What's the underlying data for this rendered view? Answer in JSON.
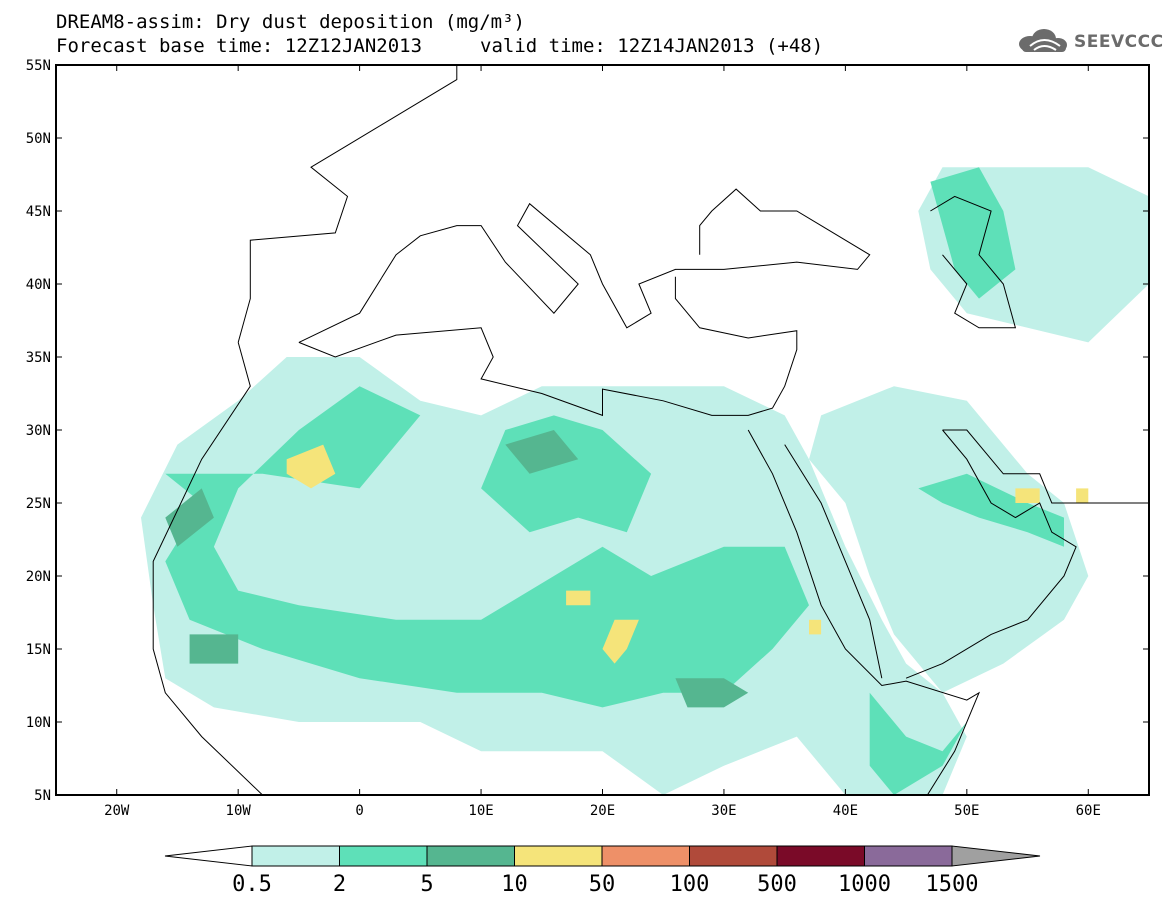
{
  "header": {
    "title": "DREAM8-assim: Dry dust deposition (mg/m³)",
    "base_time": "Forecast base time: 12Z12JAN2013",
    "valid_time": "valid time: 12Z14JAN2013 (+48)",
    "logo_text": "SEEVCCC"
  },
  "axes": {
    "lon_range": [
      -25,
      65
    ],
    "lat_range": [
      5,
      55
    ],
    "lon_ticks": [
      "20W",
      "10W",
      "0",
      "10E",
      "20E",
      "30E",
      "40E",
      "50E",
      "60E"
    ],
    "lon_values": [
      -20,
      -10,
      0,
      10,
      20,
      30,
      40,
      50,
      60
    ],
    "lat_ticks": [
      "55N",
      "50N",
      "45N",
      "40N",
      "35N",
      "30N",
      "25N",
      "20N",
      "15N",
      "10N",
      "5N"
    ],
    "lat_values": [
      55,
      50,
      45,
      40,
      35,
      30,
      25,
      20,
      15,
      10,
      5
    ]
  },
  "colorbar": {
    "labels": [
      "0.5",
      "2",
      "5",
      "10",
      "50",
      "100",
      "500",
      "1000",
      "1500"
    ],
    "colors": [
      "#c1f0e8",
      "#5ee0b8",
      "#55b690",
      "#f5e47a",
      "#ee9068",
      "#b04a3a",
      "#7a0a28",
      "#8a6a9a"
    ],
    "under_color": "#ffffff",
    "over_color": "#a0a0a0"
  },
  "dust_regions": [
    {
      "level": 0,
      "color": "#c1f0e8",
      "points": [
        [
          -18,
          24
        ],
        [
          -17,
          18
        ],
        [
          -16,
          13
        ],
        [
          -12,
          11
        ],
        [
          -5,
          10
        ],
        [
          5,
          10
        ],
        [
          10,
          8
        ],
        [
          15,
          8
        ],
        [
          20,
          8
        ],
        [
          25,
          5
        ],
        [
          30,
          7
        ],
        [
          36,
          9
        ],
        [
          40,
          5
        ],
        [
          48,
          5
        ],
        [
          50,
          9
        ],
        [
          48,
          12
        ],
        [
          45,
          14
        ],
        [
          43,
          17
        ],
        [
          40,
          22
        ],
        [
          37,
          28
        ],
        [
          35,
          31
        ],
        [
          30,
          33
        ],
        [
          20,
          33
        ],
        [
          15,
          33
        ],
        [
          10,
          31
        ],
        [
          5,
          32
        ],
        [
          0,
          35
        ],
        [
          -6,
          35
        ],
        [
          -10,
          32
        ],
        [
          -15,
          29
        ]
      ]
    },
    {
      "level": 0,
      "color": "#c1f0e8",
      "points": [
        [
          38,
          31
        ],
        [
          44,
          33
        ],
        [
          50,
          32
        ],
        [
          55,
          27
        ],
        [
          58,
          25
        ],
        [
          60,
          20
        ],
        [
          58,
          17
        ],
        [
          53,
          14
        ],
        [
          48,
          12
        ],
        [
          44,
          16
        ],
        [
          42,
          20
        ],
        [
          40,
          25
        ],
        [
          37,
          28
        ]
      ]
    },
    {
      "level": 0,
      "color": "#c1f0e8",
      "points": [
        [
          48,
          48
        ],
        [
          54,
          48
        ],
        [
          60,
          48
        ],
        [
          65,
          46
        ],
        [
          65,
          40
        ],
        [
          60,
          36
        ],
        [
          55,
          37
        ],
        [
          50,
          38
        ],
        [
          47,
          41
        ],
        [
          46,
          45
        ]
      ]
    },
    {
      "level": 1,
      "color": "#5ee0b8",
      "points": [
        [
          -16,
          27
        ],
        [
          -13,
          25
        ],
        [
          -16,
          21
        ],
        [
          -14,
          17
        ],
        [
          -8,
          15
        ],
        [
          0,
          13
        ],
        [
          8,
          12
        ],
        [
          15,
          12
        ],
        [
          20,
          11
        ],
        [
          25,
          12
        ],
        [
          30,
          12
        ],
        [
          34,
          15
        ],
        [
          37,
          18
        ],
        [
          35,
          22
        ],
        [
          30,
          22
        ],
        [
          24,
          20
        ],
        [
          20,
          22
        ],
        [
          16,
          20
        ],
        [
          10,
          17
        ],
        [
          3,
          17
        ],
        [
          -5,
          18
        ],
        [
          -10,
          19
        ],
        [
          -12,
          22
        ],
        [
          -10,
          26
        ],
        [
          -5,
          30
        ],
        [
          0,
          33
        ],
        [
          5,
          31
        ],
        [
          0,
          26
        ],
        [
          -8,
          27
        ]
      ]
    },
    {
      "level": 1,
      "color": "#5ee0b8",
      "points": [
        [
          10,
          26
        ],
        [
          12,
          30
        ],
        [
          16,
          31
        ],
        [
          20,
          30
        ],
        [
          24,
          27
        ],
        [
          22,
          23
        ],
        [
          18,
          24
        ],
        [
          14,
          23
        ]
      ]
    },
    {
      "level": 1,
      "color": "#5ee0b8",
      "points": [
        [
          42,
          12
        ],
        [
          45,
          9
        ],
        [
          48,
          8
        ],
        [
          50,
          10
        ],
        [
          48,
          7
        ],
        [
          44,
          5
        ],
        [
          42,
          7
        ]
      ]
    },
    {
      "level": 1,
      "color": "#5ee0b8",
      "points": [
        [
          47,
          47
        ],
        [
          51,
          48
        ],
        [
          53,
          45
        ],
        [
          54,
          41
        ],
        [
          51,
          39
        ],
        [
          49,
          41
        ]
      ]
    },
    {
      "level": 1,
      "color": "#5ee0b8",
      "points": [
        [
          46,
          26
        ],
        [
          50,
          27
        ],
        [
          55,
          25
        ],
        [
          58,
          24
        ],
        [
          58,
          22
        ],
        [
          55,
          23
        ],
        [
          51,
          24
        ],
        [
          48,
          25
        ]
      ]
    },
    {
      "level": 2,
      "color": "#55b690",
      "points": [
        [
          -16,
          24
        ],
        [
          -13,
          26
        ],
        [
          -12,
          24
        ],
        [
          -15,
          22
        ]
      ]
    },
    {
      "level": 2,
      "color": "#55b690",
      "points": [
        [
          -14,
          16
        ],
        [
          -10,
          16
        ],
        [
          -10,
          14
        ],
        [
          -14,
          14
        ]
      ]
    },
    {
      "level": 2,
      "color": "#55b690",
      "points": [
        [
          26,
          13
        ],
        [
          30,
          13
        ],
        [
          32,
          12
        ],
        [
          30,
          11
        ],
        [
          27,
          11
        ]
      ]
    },
    {
      "level": 2,
      "color": "#55b690",
      "points": [
        [
          12,
          29
        ],
        [
          16,
          30
        ],
        [
          18,
          28
        ],
        [
          14,
          27
        ]
      ]
    },
    {
      "level": 3,
      "color": "#f5e47a",
      "points": [
        [
          -6,
          28
        ],
        [
          -3,
          29
        ],
        [
          -2,
          27
        ],
        [
          -4,
          26
        ],
        [
          -6,
          27
        ]
      ]
    },
    {
      "level": 3,
      "color": "#f5e47a",
      "points": [
        [
          21,
          17
        ],
        [
          23,
          17
        ],
        [
          22,
          15
        ],
        [
          21,
          14
        ],
        [
          20,
          15
        ]
      ]
    },
    {
      "level": 3,
      "color": "#f5e47a",
      "points": [
        [
          17,
          19
        ],
        [
          19,
          19
        ],
        [
          19,
          18
        ],
        [
          17,
          18
        ]
      ]
    },
    {
      "level": 3,
      "color": "#f5e47a",
      "points": [
        [
          37,
          17
        ],
        [
          38,
          17
        ],
        [
          38,
          16
        ],
        [
          37,
          16
        ]
      ]
    },
    {
      "level": 3,
      "color": "#f5e47a",
      "points": [
        [
          54,
          26
        ],
        [
          56,
          26
        ],
        [
          56,
          25
        ],
        [
          54,
          25
        ]
      ]
    },
    {
      "level": 3,
      "color": "#f5e47a",
      "points": [
        [
          59,
          26
        ],
        [
          60,
          26
        ],
        [
          60,
          25
        ],
        [
          59,
          25
        ]
      ]
    }
  ],
  "coastlines": [
    [
      [
        -10,
        36
      ],
      [
        -9,
        39
      ],
      [
        -9,
        43
      ],
      [
        -2,
        43.5
      ],
      [
        -1,
        46
      ],
      [
        -4,
        48
      ],
      [
        -1,
        49.5
      ],
      [
        2,
        51
      ],
      [
        4,
        52
      ],
      [
        8,
        54
      ],
      [
        8,
        55
      ]
    ],
    [
      [
        -5,
        36
      ],
      [
        0,
        38
      ],
      [
        3,
        42
      ],
      [
        5,
        43.3
      ],
      [
        8,
        44
      ],
      [
        10,
        44
      ],
      [
        12,
        41.5
      ],
      [
        16,
        38
      ],
      [
        18,
        40
      ],
      [
        13,
        44
      ],
      [
        14,
        45.5
      ],
      [
        19,
        42
      ],
      [
        20,
        40
      ],
      [
        22,
        37
      ],
      [
        24,
        38
      ],
      [
        23,
        40
      ],
      [
        26,
        41
      ],
      [
        28,
        41
      ],
      [
        30,
        41
      ],
      [
        36,
        41.5
      ],
      [
        41,
        41
      ],
      [
        42,
        42
      ],
      [
        38,
        44
      ],
      [
        36,
        45
      ],
      [
        33,
        45
      ],
      [
        31,
        46.5
      ],
      [
        29,
        45
      ],
      [
        28,
        44
      ],
      [
        28,
        42
      ]
    ],
    [
      [
        -10,
        36
      ],
      [
        -9,
        33
      ],
      [
        -13,
        28
      ],
      [
        -17,
        21
      ],
      [
        -17,
        15
      ],
      [
        -16,
        12
      ],
      [
        -13,
        9
      ],
      [
        -8,
        5
      ]
    ],
    [
      [
        -5,
        36
      ],
      [
        -2,
        35
      ],
      [
        3,
        36.5
      ],
      [
        10,
        37
      ],
      [
        11,
        35
      ],
      [
        10,
        33.5
      ],
      [
        15,
        32.5
      ],
      [
        20,
        31
      ],
      [
        20,
        32.8
      ],
      [
        25,
        32
      ],
      [
        29,
        31
      ],
      [
        32,
        31
      ],
      [
        34,
        31.5
      ],
      [
        35,
        33
      ],
      [
        36,
        35.5
      ],
      [
        36,
        36.8
      ],
      [
        32,
        36.3
      ],
      [
        28,
        37
      ],
      [
        26,
        39
      ],
      [
        26,
        40.5
      ]
    ],
    [
      [
        32,
        30
      ],
      [
        34,
        27
      ],
      [
        36,
        23
      ],
      [
        38,
        18
      ],
      [
        40,
        15
      ],
      [
        43,
        12.5
      ],
      [
        45,
        12.8
      ],
      [
        50,
        11.5
      ],
      [
        51,
        12
      ],
      [
        49,
        8
      ],
      [
        46,
        4
      ]
    ],
    [
      [
        35,
        29
      ],
      [
        38,
        25
      ],
      [
        40,
        21
      ],
      [
        42,
        17
      ],
      [
        43,
        13
      ]
    ],
    [
      [
        48,
        30
      ],
      [
        50,
        28
      ],
      [
        52,
        25
      ],
      [
        54,
        24
      ],
      [
        56,
        25
      ],
      [
        57,
        23
      ],
      [
        59,
        22
      ],
      [
        58,
        20
      ],
      [
        55,
        17
      ],
      [
        52,
        16
      ],
      [
        48,
        14
      ],
      [
        45,
        13
      ]
    ],
    [
      [
        48,
        30
      ],
      [
        50,
        30
      ],
      [
        53,
        27
      ],
      [
        56,
        27
      ],
      [
        57,
        25
      ],
      [
        62,
        25
      ],
      [
        65,
        25
      ]
    ],
    [
      [
        47,
        45
      ],
      [
        49,
        46
      ],
      [
        52,
        45
      ],
      [
        51,
        42
      ],
      [
        53,
        40
      ],
      [
        54,
        37
      ],
      [
        51,
        37
      ],
      [
        49,
        38
      ],
      [
        50,
        40
      ],
      [
        48,
        42
      ]
    ]
  ]
}
